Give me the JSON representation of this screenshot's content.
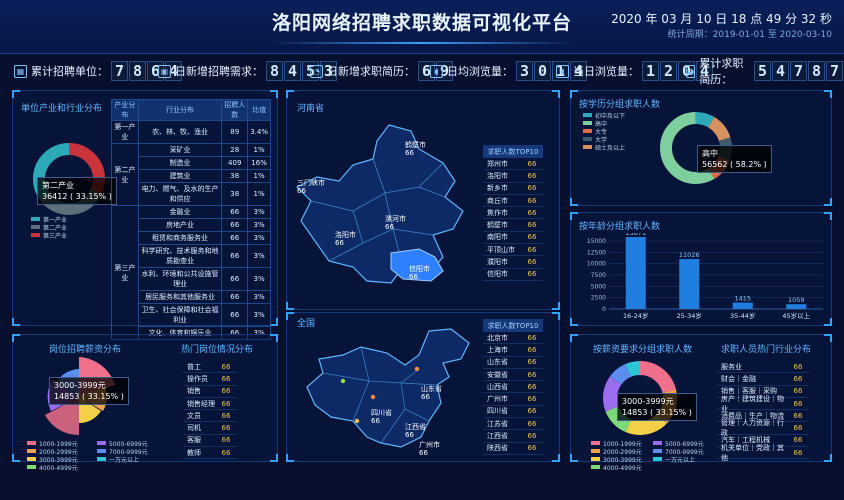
{
  "header": {
    "title": "洛阳网络招聘求职数据可视化平台",
    "clock": "2020 年 03 月 10 日 18 点 49 分 32 秒",
    "period": "统计周期：2019-01-01 至 2020-03-10"
  },
  "kpis": [
    {
      "label": "累计招聘单位：",
      "digits": [
        "7",
        "8",
        "6",
        "4"
      ]
    },
    {
      "label": "日新增招聘需求：",
      "digits": [
        "8",
        "4",
        "5",
        "3"
      ]
    },
    {
      "label": "日新增求职简历：",
      "digits": [
        "6",
        "9"
      ]
    },
    {
      "label": "日均浏览量：",
      "digits": [
        "3",
        "0",
        "1",
        "4"
      ]
    },
    {
      "label": "当日浏览量：",
      "digits": [
        "1",
        "2",
        "0",
        "4"
      ]
    },
    {
      "label": "累计求职简历：",
      "digits": [
        "5",
        "4",
        "7",
        "8",
        "7"
      ]
    }
  ],
  "industry": {
    "title": "单位产业和行业分布",
    "tooltip": [
      "第二产业",
      "36412 ( 33.15% )"
    ],
    "legend": [
      "第一产业",
      "第二产业",
      "第三产业"
    ],
    "colors": [
      "#2ea9b8",
      "#5e6f7c",
      "#c9343a"
    ],
    "table": {
      "headers": [
        "产业分布",
        "行业分布",
        "招聘人数",
        "比值"
      ],
      "groups": [
        {
          "name": "第一产业",
          "rows": [
            [
              "农、林、牧、渔业",
              "89",
              "3.4%"
            ]
          ]
        },
        {
          "name": "第二产业",
          "rows": [
            [
              "采矿业",
              "28",
              "1%"
            ],
            [
              "制造业",
              "409",
              "16%"
            ],
            [
              "建筑业",
              "38",
              "1%"
            ],
            [
              "电力、燃气、及水的生产和供应",
              "38",
              "1%"
            ]
          ]
        },
        {
          "name": "第三产业",
          "rows": [
            [
              "金融业",
              "66",
              "3%"
            ],
            [
              "房地产业",
              "66",
              "3%"
            ],
            [
              "租赁和商务服务业",
              "66",
              "3%"
            ],
            [
              "科学研究、技术服务和地质勘查业",
              "66",
              "3%"
            ],
            [
              "水利、环境和公共设施管理业",
              "66",
              "3%"
            ],
            [
              "居民服务和其他服务业",
              "66",
              "3%"
            ],
            [
              "卫生、社会保障和社会福利业",
              "66",
              "3%"
            ],
            [
              "文化、体育和娱乐业",
              "66",
              "3%"
            ]
          ]
        }
      ]
    }
  },
  "henan": {
    "title": "河南省",
    "labels": [
      [
        "鹤壁市",
        "66"
      ],
      [
        "三门峡市",
        "66"
      ],
      [
        "洛阳市",
        "66"
      ],
      [
        "漯河市",
        "66"
      ],
      [
        "信阳市",
        "66"
      ]
    ],
    "top10_title": "求职人数TOP10",
    "top10": [
      [
        "郑州市",
        "66"
      ],
      [
        "洛阳市",
        "66"
      ],
      [
        "新乡市",
        "66"
      ],
      [
        "商丘市",
        "66"
      ],
      [
        "焦作市",
        "66"
      ],
      [
        "鹤壁市",
        "66"
      ],
      [
        "南阳市",
        "66"
      ],
      [
        "平顶山市",
        "66"
      ],
      [
        "濮阳市",
        "66"
      ],
      [
        "信阳市",
        "66"
      ]
    ]
  },
  "china": {
    "title": "全国",
    "labels": [
      [
        "山东省",
        "66"
      ],
      [
        "四川省",
        "66"
      ],
      [
        "江西省",
        "66"
      ],
      [
        "广州市",
        "66"
      ]
    ],
    "top10_title": "求职人数TOP10",
    "top10": [
      [
        "北京市",
        "66"
      ],
      [
        "上海市",
        "66"
      ],
      [
        "山东省",
        "66"
      ],
      [
        "安徽省",
        "66"
      ],
      [
        "山西省",
        "66"
      ],
      [
        "广州市",
        "66"
      ],
      [
        "四川省",
        "66"
      ],
      [
        "江苏省",
        "66"
      ],
      [
        "江西省",
        "66"
      ],
      [
        "陕西省",
        "66"
      ]
    ]
  },
  "education": {
    "title": "按学历分组求职人数",
    "legend": [
      "初中及以下",
      "高中",
      "大专",
      "大学",
      "硕士及以上"
    ],
    "colors": [
      "#2ea9b8",
      "#7fcf9e",
      "#e06a4a",
      "#3f5b6e",
      "#d6915e"
    ],
    "tooltip": [
      "高中",
      "56562 ( 58.2% )"
    ]
  },
  "age": {
    "title": "按年龄分组求职人数",
    "chart_data": {
      "type": "bar",
      "categories": [
        "16-24岁",
        "25-34岁",
        "35-44岁",
        "45岁以上"
      ],
      "values": [
        15871,
        11026,
        1415,
        1059
      ],
      "ylim": [
        0,
        15000
      ],
      "yticks": [
        0,
        2500,
        5000,
        7500,
        10000,
        12500,
        15000
      ]
    }
  },
  "salary": {
    "title": "岗位招聘薪资分布",
    "tooltip": [
      "3000-3999元",
      "14853 ( 33.15% )"
    ],
    "legend": [
      "1000-1999元",
      "5000-6999元",
      "2000-2999元",
      "7000-9999元",
      "3000-3999元",
      "一万元以上",
      "4000-4999元"
    ],
    "colors": [
      "#f06f8b",
      "#9a6cf0",
      "#f2a34a",
      "#5b8ef0",
      "#f4d048",
      "#2ec6d6",
      "#7dd87a"
    ]
  },
  "hotjobs": {
    "title": "热门岗位情况分布",
    "rows": [
      [
        "普工",
        "66"
      ],
      [
        "操作员",
        "66"
      ],
      [
        "销售",
        "66"
      ],
      [
        "销售经理",
        "66"
      ],
      [
        "文员",
        "66"
      ],
      [
        "司机",
        "66"
      ],
      [
        "客服",
        "66"
      ],
      [
        "教师",
        "66"
      ]
    ]
  },
  "expected_salary": {
    "title": "按薪资要求分组求职人数",
    "tooltip": [
      "3000-3999元",
      "14853 ( 33.15% )"
    ],
    "legend": [
      "1000-1999元",
      "5000-6999元",
      "2000-2999元",
      "7000-9999元",
      "3000-3999元",
      "一万元以上",
      "4000-4999元"
    ],
    "colors": [
      "#f06f8b",
      "#9a6cf0",
      "#f2a34a",
      "#5b8ef0",
      "#f4d048",
      "#2ec6d6",
      "#7dd87a"
    ]
  },
  "hotindustry": {
    "title": "求职人员热门行业分布",
    "rows": [
      [
        "服务业",
        "66"
      ],
      [
        "财会｜金融",
        "66"
      ],
      [
        "销售｜客服｜采购",
        "66"
      ],
      [
        "房产｜建筑建设｜物业",
        "66"
      ],
      [
        "消费品｜生产｜物流",
        "66"
      ],
      [
        "管理｜人力资源｜行政",
        "66"
      ],
      [
        "汽车｜工程机械",
        "66"
      ],
      [
        "机关单位｜党政｜其他",
        "66"
      ]
    ]
  }
}
